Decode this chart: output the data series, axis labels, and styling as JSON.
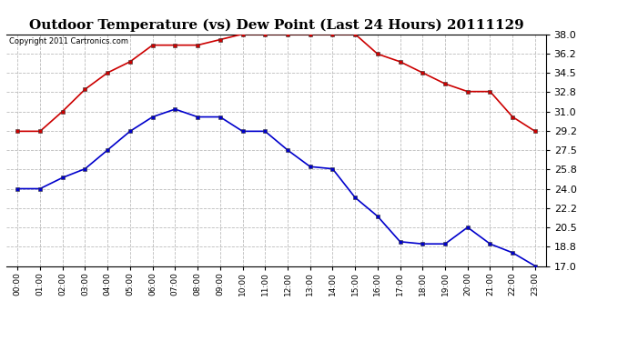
{
  "title": "Outdoor Temperature (vs) Dew Point (Last 24 Hours) 20111129",
  "copyright_text": "Copyright 2011 Cartronics.com",
  "hours": [
    "00:00",
    "01:00",
    "02:00",
    "03:00",
    "04:00",
    "05:00",
    "06:00",
    "07:00",
    "08:00",
    "09:00",
    "10:00",
    "11:00",
    "12:00",
    "13:00",
    "14:00",
    "15:00",
    "16:00",
    "17:00",
    "18:00",
    "19:00",
    "20:00",
    "21:00",
    "22:00",
    "23:00"
  ],
  "temp_red": [
    29.2,
    29.2,
    31.0,
    33.0,
    34.5,
    35.5,
    37.0,
    37.0,
    37.0,
    37.5,
    38.0,
    38.0,
    38.0,
    38.0,
    38.0,
    38.0,
    36.2,
    35.5,
    34.5,
    33.5,
    32.8,
    32.8,
    30.5,
    29.2
  ],
  "dew_blue": [
    24.0,
    24.0,
    25.0,
    25.8,
    27.5,
    29.2,
    30.5,
    31.2,
    30.5,
    30.5,
    29.2,
    29.2,
    27.5,
    26.0,
    25.8,
    23.2,
    21.5,
    19.2,
    19.0,
    19.0,
    20.5,
    19.0,
    18.2,
    17.0
  ],
  "ylim_min": 17.0,
  "ylim_max": 38.0,
  "yticks": [
    17.0,
    18.8,
    20.5,
    22.2,
    24.0,
    25.8,
    27.5,
    29.2,
    31.0,
    32.8,
    34.5,
    36.2,
    38.0
  ],
  "red_color": "#cc0000",
  "blue_color": "#0000cc",
  "bg_color": "#ffffff",
  "grid_color": "#bbbbbb",
  "title_fontsize": 11,
  "copyright_fontsize": 6,
  "ytick_fontsize": 8,
  "xtick_fontsize": 6.5
}
